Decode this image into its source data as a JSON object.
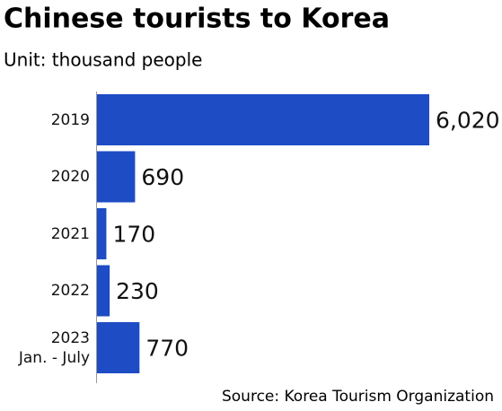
{
  "chart_data": {
    "type": "bar",
    "orientation": "horizontal",
    "title": "Chinese tourists to Korea",
    "subtitle": "Unit: thousand people",
    "source": "Source: Korea Tourism Organization",
    "categories": [
      "2019",
      "2020",
      "2021",
      "2022",
      "2023\nJan. - July"
    ],
    "values": [
      6020,
      690,
      170,
      230,
      770
    ],
    "value_labels": [
      "6,020",
      "690",
      "170",
      "230",
      "770"
    ],
    "color": "#1d4cc4"
  }
}
